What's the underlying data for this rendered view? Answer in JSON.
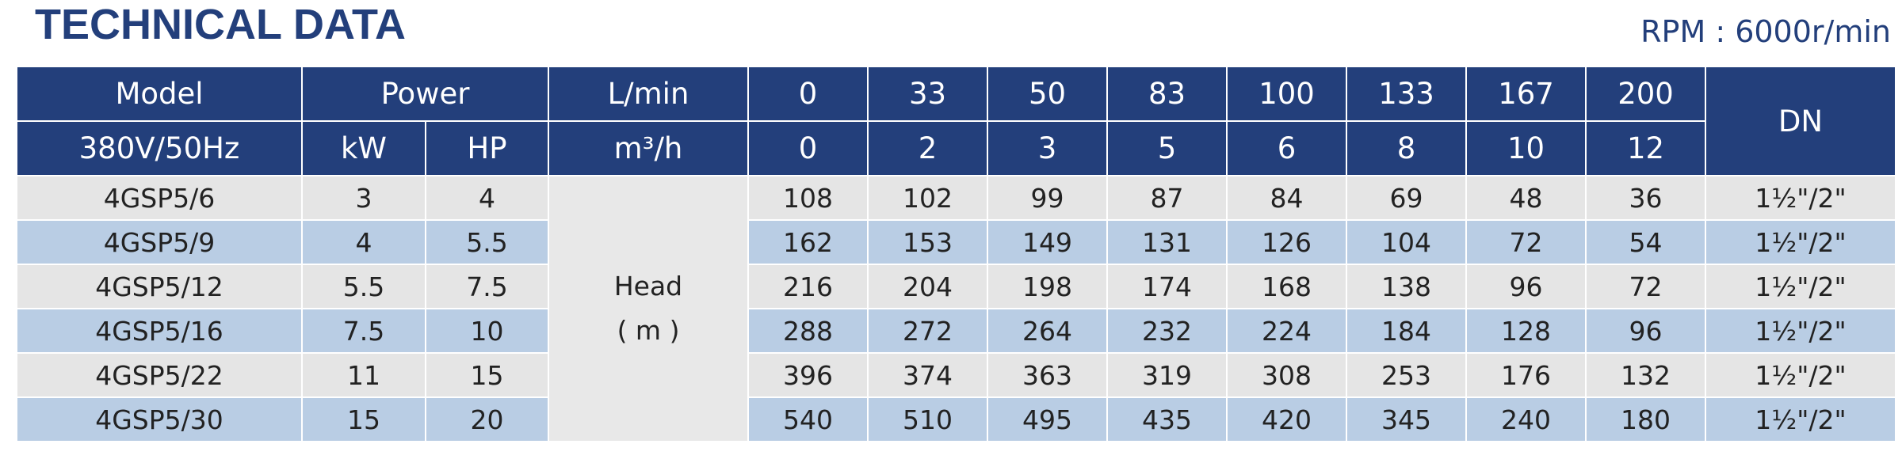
{
  "header": {
    "title": "TECHNICAL DATA",
    "rpm": "RPM : 6000r/min"
  },
  "table": {
    "model_label": "Model",
    "power_label": "Power",
    "lpm_label": "L/min",
    "dn_label": "DN",
    "voltage_label": "380V/50Hz",
    "kw_label": "kW",
    "hp_label": "HP",
    "m3h_label": "m³/h",
    "flow_lpm": [
      0,
      33,
      50,
      83,
      100,
      133,
      167,
      200
    ],
    "flow_m3h": [
      0,
      2,
      3,
      5,
      6,
      8,
      10,
      12
    ],
    "head_label": [
      "Head",
      "( m )"
    ],
    "rows": [
      {
        "model": "4GSP5/6",
        "kw": 3,
        "hp": 4,
        "heads": [
          108,
          102,
          99,
          87,
          84,
          69,
          48,
          36
        ],
        "dn": "1½\"/2\""
      },
      {
        "model": "4GSP5/9",
        "kw": 4,
        "hp": 5.5,
        "heads": [
          162,
          153,
          149,
          131,
          126,
          104,
          72,
          54
        ],
        "dn": "1½\"/2\""
      },
      {
        "model": "4GSP5/12",
        "kw": 5.5,
        "hp": 7.5,
        "heads": [
          216,
          204,
          198,
          174,
          168,
          138,
          96,
          72
        ],
        "dn": "1½\"/2\""
      },
      {
        "model": "4GSP5/16",
        "kw": 7.5,
        "hp": 10,
        "heads": [
          288,
          272,
          264,
          232,
          224,
          184,
          128,
          96
        ],
        "dn": "1½\"/2\""
      },
      {
        "model": "4GSP5/22",
        "kw": 11,
        "hp": 15,
        "heads": [
          396,
          374,
          363,
          319,
          308,
          253,
          176,
          132
        ],
        "dn": "1½\"/2\""
      },
      {
        "model": "4GSP5/30",
        "kw": 15,
        "hp": 20,
        "heads": [
          540,
          510,
          495,
          435,
          420,
          345,
          240,
          180
        ],
        "dn": "1½\"/2\""
      }
    ]
  }
}
